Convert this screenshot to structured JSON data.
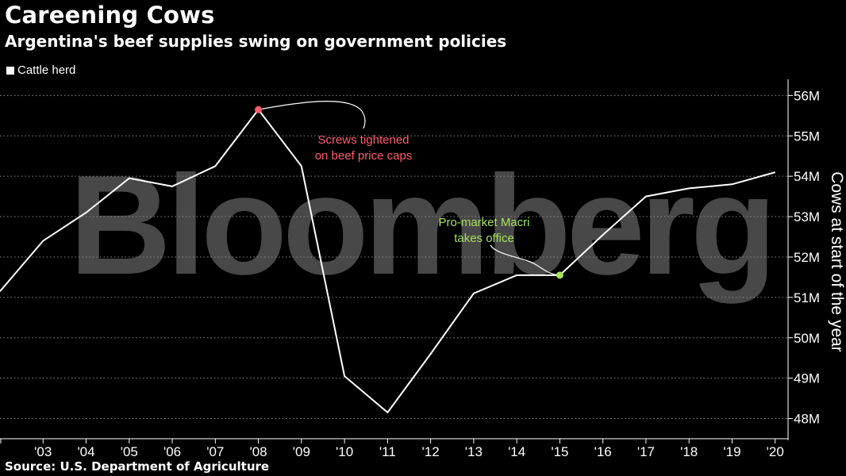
{
  "title": "Careening Cows",
  "subtitle": "Argentina's beef supplies swing on government policies",
  "source": "Source: U.S. Department of Agriculture",
  "watermark": "Bloomberg",
  "colors": {
    "background": "#000000",
    "line": "#ffffff",
    "text": "#ffffff",
    "annotation_red": "#ff5c6e",
    "annotation_green": "#a6e35a",
    "watermark": "#5a5a5a"
  },
  "chart_data": {
    "type": "line",
    "ylabel": "Cows at start of the year",
    "yaxis_position": "right",
    "ylim": [
      47.5,
      56.4
    ],
    "yticks": [
      48,
      49,
      50,
      51,
      52,
      53,
      54,
      55,
      56
    ],
    "ytick_labels": [
      "48M",
      "49M",
      "50M",
      "51M",
      "52M",
      "53M",
      "54M",
      "55M",
      "56M"
    ],
    "xlim": [
      2002,
      2020.3
    ],
    "xticks": [
      2003,
      2004,
      2005,
      2006,
      2007,
      2008,
      2009,
      2010,
      2011,
      2012,
      2013,
      2014,
      2015,
      2016,
      2017,
      2018,
      2019,
      2020
    ],
    "xtick_labels": [
      "'03",
      "'04",
      "'05",
      "'06",
      "'07",
      "'08",
      "'09",
      "'10",
      "'11",
      "'12",
      "'13",
      "'14",
      "'15",
      "'16",
      "'17",
      "'18",
      "'19",
      "'20"
    ],
    "legend_position": "top-left",
    "grid": "horizontal-dotted",
    "series": [
      {
        "name": "Cattle herd",
        "x": [
          2002,
          2003,
          2004,
          2005,
          2006,
          2007,
          2008,
          2009,
          2010,
          2011,
          2012,
          2013,
          2014,
          2015,
          2016,
          2017,
          2018,
          2019,
          2020
        ],
        "values": [
          51.15,
          52.4,
          53.1,
          53.95,
          53.75,
          54.25,
          55.65,
          54.25,
          49.05,
          48.15,
          49.6,
          51.1,
          51.55,
          51.55,
          52.55,
          53.5,
          53.7,
          53.8,
          54.1
        ]
      }
    ],
    "annotations": [
      {
        "text_lines": [
          "Screws tightened",
          "on beef price caps"
        ],
        "x": 2008,
        "y": 55.65,
        "color": "red"
      },
      {
        "text_lines": [
          "Pro-market Macri",
          "takes office"
        ],
        "x": 2015,
        "y": 51.55,
        "color": "green"
      }
    ]
  }
}
